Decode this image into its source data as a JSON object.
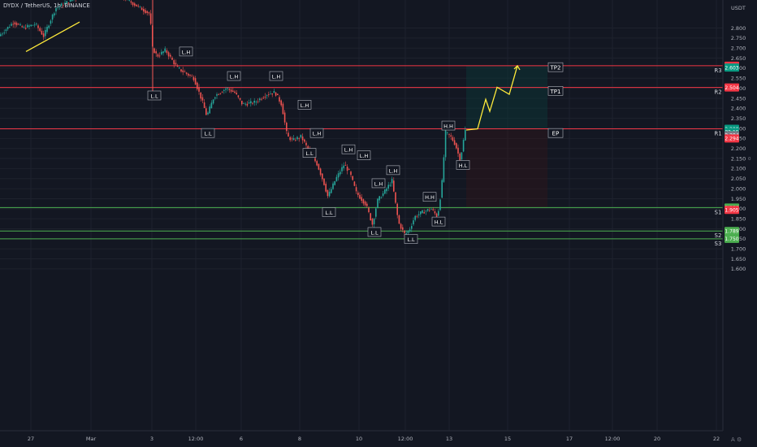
{
  "header": {
    "symbol": "DYDX / TetherUS",
    "timeframe": "1h",
    "exchange": "BINANCE",
    "title": "DYDX / TetherUS, 1h, BINANCE"
  },
  "chart_data": {
    "type": "candlestick",
    "currency_label": "USDT",
    "ylim": [
      1.575,
      2.875
    ],
    "y_ticks": [
      "2.800",
      "2.750",
      "2.700",
      "2.650",
      "2.600",
      "2.550",
      "2.500",
      "2.450",
      "2.400",
      "2.350",
      "2.300",
      "2.250",
      "2.200",
      "2.150",
      "2.100",
      "2.050",
      "2.000",
      "1.950",
      "1.900",
      "1.850",
      "1.800",
      "1.750",
      "1.700",
      "1.650",
      "1.600"
    ],
    "x_ticks": [
      {
        "label": "27",
        "x": 0
      },
      {
        "label": "Mar",
        "x": 1
      },
      {
        "label": "3",
        "x": 2
      },
      {
        "label": "12:00",
        "x": 3
      },
      {
        "label": "6",
        "x": 4
      },
      {
        "label": "8",
        "x": 5
      },
      {
        "label": "10",
        "x": 6
      },
      {
        "label": "12:00",
        "x": 7
      },
      {
        "label": "13",
        "x": 8
      },
      {
        "label": "15",
        "x": 9
      },
      {
        "label": "17",
        "x": 10
      },
      {
        "label": "12:00",
        "x": 11
      },
      {
        "label": "20",
        "x": 12
      },
      {
        "label": "22",
        "x": 13
      }
    ],
    "levels": [
      {
        "name": "R3",
        "price": 2.612,
        "color": "#f23645"
      },
      {
        "name": "R2",
        "price": 2.504,
        "color": "#f23645"
      },
      {
        "name": "R1",
        "price": 2.298,
        "color": "#f23645"
      },
      {
        "name": "S1",
        "price": 1.906,
        "color": "#4caf50"
      },
      {
        "name": "S2",
        "price": 1.789,
        "color": "#4caf50"
      },
      {
        "name": "S3",
        "price": 1.75,
        "color": "#4caf50"
      }
    ],
    "price_badges": [
      {
        "text": "2.612",
        "price": 2.612,
        "color": "#f23645"
      },
      {
        "text": "2.603",
        "price": 2.603,
        "color": "#089981"
      },
      {
        "text": "2.504",
        "price": 2.504,
        "color": "#f23645"
      },
      {
        "text": "2.298",
        "price": 2.298,
        "color": "#089981"
      },
      {
        "text": "32:15",
        "price": 2.282,
        "color": "#089981"
      },
      {
        "text": "2.294",
        "price": 2.266,
        "color": "#787b86"
      },
      {
        "text": "2.294",
        "price": 2.25,
        "color": "#f23645"
      },
      {
        "text": "1.906",
        "price": 1.906,
        "color": "#4caf50"
      },
      {
        "text": "1.905",
        "price": 1.894,
        "color": "#f23645"
      },
      {
        "text": "1.789",
        "price": 1.789,
        "color": "#4caf50"
      },
      {
        "text": "1.750",
        "price": 1.75,
        "color": "#4caf50"
      }
    ],
    "trade_labels": [
      {
        "text": "TP2",
        "price": 2.603
      },
      {
        "text": "TP1",
        "price": 2.485
      },
      {
        "text": "EP",
        "price": 2.275
      }
    ],
    "structure_labels": [
      {
        "text": "L.L",
        "x": 190,
        "price": 2.462
      },
      {
        "text": "L.H",
        "x": 229,
        "price": 2.681
      },
      {
        "text": "L.H",
        "x": 288,
        "price": 2.559
      },
      {
        "text": "L.H",
        "x": 340,
        "price": 2.559
      },
      {
        "text": "L.L",
        "x": 256,
        "price": 2.275
      },
      {
        "text": "L.H",
        "x": 375,
        "price": 2.416
      },
      {
        "text": "L.H",
        "x": 390,
        "price": 2.275
      },
      {
        "text": "L.L",
        "x": 381,
        "price": 2.176
      },
      {
        "text": "L.H",
        "x": 429,
        "price": 2.194
      },
      {
        "text": "L.H",
        "x": 448,
        "price": 2.164
      },
      {
        "text": "L.L",
        "x": 405,
        "price": 1.881
      },
      {
        "text": "L.H",
        "x": 466,
        "price": 2.025
      },
      {
        "text": "L.H",
        "x": 484,
        "price": 2.09
      },
      {
        "text": "H.H",
        "x": 529,
        "price": 1.957
      },
      {
        "text": "H.L",
        "x": 540,
        "price": 1.834
      },
      {
        "text": "L.L",
        "x": 461,
        "price": 1.782
      },
      {
        "text": "L.L",
        "x": 506,
        "price": 1.747
      },
      {
        "text": "H.H",
        "x": 552,
        "price": 2.312
      },
      {
        "text": "H.L",
        "x": 570,
        "price": 2.116
      }
    ],
    "projection_path": [
      {
        "x": 574,
        "price": 2.292
      },
      {
        "x": 588,
        "price": 2.298
      },
      {
        "x": 598,
        "price": 2.445
      },
      {
        "x": 603,
        "price": 2.385
      },
      {
        "x": 612,
        "price": 2.505
      },
      {
        "x": 627,
        "price": 2.47
      },
      {
        "x": 637,
        "price": 2.612
      }
    ],
    "trendline": [
      {
        "x": 32,
        "price": 2.683
      },
      {
        "x": 98,
        "price": 2.83
      }
    ],
    "current_price": 2.294
  }
}
